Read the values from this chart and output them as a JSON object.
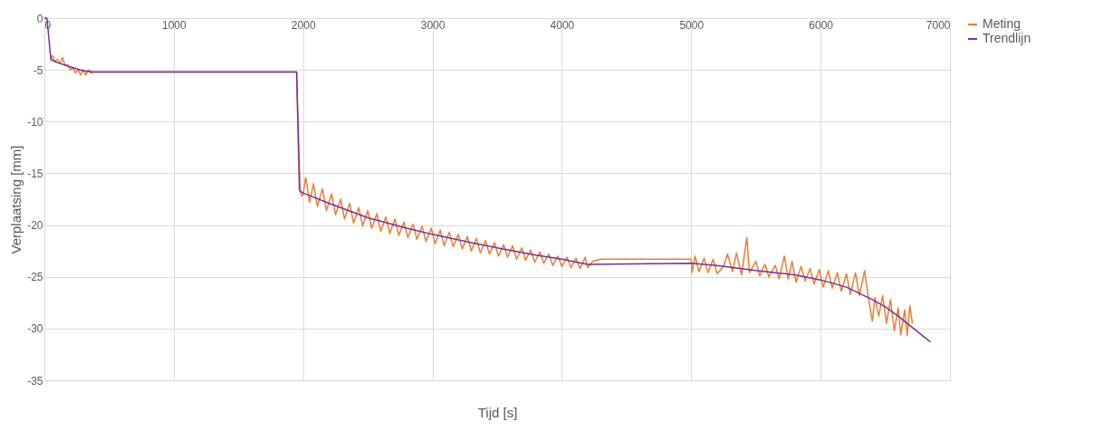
{
  "chart_data": {
    "type": "line",
    "xlabel": "Tijd [s]",
    "ylabel": "Verplaatsing [mm]",
    "xlim": [
      0,
      7000
    ],
    "xticks": [
      0,
      1000,
      2000,
      3000,
      4000,
      5000,
      6000,
      7000
    ],
    "ylim": [
      -35,
      0
    ],
    "yticks": [
      -35,
      -30,
      -25,
      -20,
      -15,
      -10,
      -5,
      0
    ],
    "grid": true,
    "legend": "right",
    "marker": "none",
    "line_style": "solid",
    "series": [
      {
        "name": "Meting",
        "color": "#ed7d31",
        "x": [
          50,
          60,
          80,
          100,
          120,
          140,
          160,
          180,
          200,
          220,
          240,
          260,
          280,
          300,
          320,
          340,
          360,
          380,
          1950,
          1970,
          1990,
          2000,
          2020,
          2050,
          2080,
          2110,
          2150,
          2180,
          2220,
          2250,
          2290,
          2320,
          2360,
          2390,
          2430,
          2460,
          2500,
          2530,
          2570,
          2600,
          2640,
          2670,
          2710,
          2740,
          2780,
          2810,
          2850,
          2880,
          2920,
          2950,
          2990,
          3020,
          3060,
          3090,
          3130,
          3160,
          3200,
          3230,
          3270,
          3300,
          3340,
          3370,
          3410,
          3440,
          3480,
          3510,
          3550,
          3580,
          3620,
          3650,
          3690,
          3720,
          3760,
          3790,
          3830,
          3860,
          3900,
          3930,
          3970,
          4000,
          4040,
          4070,
          4110,
          4140,
          4180,
          4200,
          4240,
          4300,
          5000,
          5005,
          5030,
          5060,
          5100,
          5130,
          5170,
          5200,
          5250,
          5280,
          5320,
          5350,
          5390,
          5430,
          5450,
          5500,
          5530,
          5570,
          5600,
          5650,
          5680,
          5720,
          5750,
          5780,
          5810,
          5850,
          5880,
          5920,
          5950,
          5990,
          6020,
          6060,
          6090,
          6130,
          6160,
          6200,
          6230,
          6270,
          6300,
          6340,
          6370,
          6400,
          6420,
          6450,
          6480,
          6510,
          6540,
          6570,
          6600,
          6620,
          6650,
          6670,
          6690,
          6710
        ],
        "values": [
          -4.0,
          -3.6,
          -4.2,
          -4.0,
          -4.4,
          -3.8,
          -4.6,
          -4.5,
          -5.0,
          -4.8,
          -5.3,
          -5.0,
          -5.5,
          -5.0,
          -5.5,
          -5.0,
          -5.3,
          -5.2,
          -5.2,
          -16.5,
          -17.2,
          -17.0,
          -15.4,
          -17.8,
          -16.0,
          -18.2,
          -16.5,
          -18.6,
          -17.0,
          -19.0,
          -17.5,
          -19.4,
          -17.9,
          -19.8,
          -18.3,
          -20.1,
          -18.6,
          -20.3,
          -18.9,
          -20.6,
          -19.2,
          -20.8,
          -19.4,
          -21.0,
          -19.7,
          -21.2,
          -19.9,
          -21.4,
          -20.1,
          -21.6,
          -20.3,
          -21.8,
          -20.5,
          -22.0,
          -20.7,
          -22.1,
          -20.9,
          -22.3,
          -21.1,
          -22.5,
          -21.3,
          -22.7,
          -21.5,
          -22.8,
          -21.7,
          -23.0,
          -21.9,
          -23.1,
          -22.0,
          -23.3,
          -22.2,
          -23.4,
          -22.4,
          -23.6,
          -22.6,
          -23.7,
          -22.8,
          -23.9,
          -23.0,
          -24.0,
          -23.1,
          -24.1,
          -23.2,
          -24.2,
          -23.1,
          -24.1,
          -23.5,
          -23.3,
          -23.3,
          -24.6,
          -23.0,
          -24.5,
          -23.2,
          -24.6,
          -23.3,
          -24.7,
          -24.0,
          -22.8,
          -24.5,
          -22.7,
          -24.8,
          -21.2,
          -24.6,
          -23.5,
          -24.9,
          -23.8,
          -25.0,
          -23.9,
          -25.2,
          -23.0,
          -25.2,
          -23.5,
          -25.5,
          -24.0,
          -25.4,
          -24.2,
          -25.7,
          -24.3,
          -26.0,
          -24.4,
          -26.1,
          -24.6,
          -26.4,
          -24.7,
          -26.7,
          -24.6,
          -26.8,
          -24.4,
          -27.0,
          -29.3,
          -27.0,
          -28.8,
          -26.8,
          -29.5,
          -27.2,
          -30.2,
          -28.0,
          -30.6,
          -28.2,
          -30.7,
          -27.8,
          -29.5
        ]
      },
      {
        "name": "Trendlijn",
        "color": "#7030a0",
        "x": [
          0,
          20,
          50,
          100,
          200,
          300,
          380,
          1950,
          1975,
          2000,
          2200,
          2500,
          2800,
          3000,
          3300,
          3500,
          3800,
          4000,
          4200,
          5000,
          5200,
          5500,
          5800,
          6000,
          6200,
          6400,
          6500,
          6600,
          6700,
          6850
        ],
        "values": [
          0,
          0,
          -4.0,
          -4.3,
          -4.7,
          -5.1,
          -5.2,
          -5.2,
          -16.7,
          -16.9,
          -17.9,
          -19.3,
          -20.3,
          -20.9,
          -21.7,
          -22.2,
          -22.9,
          -23.3,
          -23.8,
          -23.7,
          -23.9,
          -24.4,
          -24.8,
          -25.3,
          -26.0,
          -27.2,
          -27.9,
          -28.8,
          -29.8,
          -31.3
        ]
      }
    ]
  }
}
